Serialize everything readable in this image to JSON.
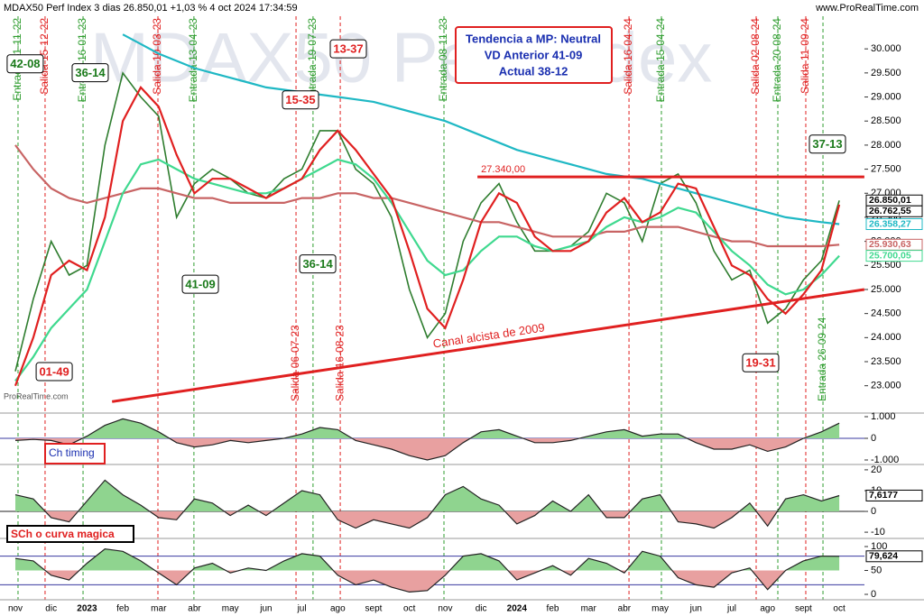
{
  "header": "MDAX50 Perf Index 3 dias 26.850,01 +1,03 % 4 oct 2024 17:34:59",
  "source": "www.ProRealTime.com",
  "watermark": "MDAX50 Perf Index",
  "footer_logo": "ProRealTime.com",
  "info_box": [
    "Tendencia a MP: Neutral",
    "VD Anterior 41-09",
    "Actual 38-12"
  ],
  "chart_data": [
    {
      "type": "line",
      "categories": [
        "nov",
        null,
        "dic",
        null,
        "2023",
        null,
        "feb",
        null,
        "mar",
        null,
        "abr",
        null,
        "may",
        null,
        "jun",
        null,
        "jul",
        null,
        "ago",
        null,
        "sept",
        null,
        "oct",
        null,
        "nov",
        null,
        "dic",
        null,
        "2024",
        null,
        "feb",
        null,
        "mar",
        null,
        "abr",
        null,
        "may",
        null,
        "jun",
        null,
        "jul",
        null,
        "ago",
        null,
        "sept",
        null,
        "oct"
      ],
      "ylim": [
        22432,
        30678
      ],
      "yticks": [
        {
          "value": 23000,
          "label": "23.000"
        },
        {
          "value": 23500,
          "label": "23.500"
        },
        {
          "value": 24000,
          "label": "24.000"
        },
        {
          "value": 24500,
          "label": "24.500"
        },
        {
          "value": 25000,
          "label": "25.000"
        },
        {
          "value": 25500,
          "label": "25.500"
        },
        {
          "value": 26000,
          "label": "26.000"
        },
        {
          "value": 26500,
          "label": "26.500"
        },
        {
          "value": 27000,
          "label": "27.000"
        },
        {
          "value": 27500,
          "label": "27.500"
        },
        {
          "value": 28000,
          "label": "28.000"
        },
        {
          "value": 28500,
          "label": "28.500"
        },
        {
          "value": 29000,
          "label": "29.000"
        },
        {
          "value": 29500,
          "label": "29.500"
        },
        {
          "value": 30000,
          "label": "30.000"
        }
      ],
      "series": [
        {
          "color": "#2f7d2f",
          "values": [
            23300,
            24800,
            26000,
            25300,
            25500,
            28000,
            29500,
            29000,
            28600,
            26500,
            27200,
            27500,
            27300,
            27000,
            26900,
            27300,
            27500,
            28300,
            28300,
            27500,
            27200,
            26500,
            25000,
            24000,
            24500,
            26000,
            26800,
            27200,
            26400,
            25800,
            25800,
            25900,
            26200,
            27000,
            26800,
            26000,
            27200,
            27400,
            26800,
            25800,
            25200,
            25400,
            24300,
            24600,
            25200,
            25600,
            26850.01
          ]
        },
        {
          "color": "#c86464",
          "values": [
            28000,
            27500,
            27100,
            26900,
            26800,
            26900,
            27000,
            27100,
            27100,
            27000,
            26900,
            26900,
            26800,
            26800,
            26800,
            26800,
            26900,
            26900,
            27000,
            27000,
            26900,
            26900,
            26800,
            26700,
            26600,
            26500,
            26400,
            26400,
            26300,
            26200,
            26100,
            26100,
            26100,
            26200,
            26200,
            26300,
            26300,
            26300,
            26200,
            26100,
            26000,
            26000,
            25900,
            25900,
            25900,
            25900,
            25930.63
          ]
        },
        {
          "color": "#1fb8c4",
          "values": [
            null,
            null,
            null,
            null,
            null,
            null,
            30300,
            30100,
            29900,
            29750,
            29600,
            29500,
            29400,
            29300,
            29200,
            29150,
            29100,
            29050,
            29000,
            28950,
            28900,
            28800,
            28700,
            28600,
            28500,
            28350,
            28200,
            28050,
            27900,
            27800,
            27700,
            27600,
            27500,
            27400,
            27350,
            27300,
            27200,
            27100,
            27000,
            26900,
            26800,
            26700,
            26600,
            26500,
            26450,
            26400,
            26358.27
          ]
        },
        {
          "color": "#3fd98f",
          "values": [
            23100,
            23600,
            24200,
            24600,
            25000,
            26000,
            27000,
            27600,
            27700,
            27500,
            27300,
            27200,
            27100,
            27000,
            27000,
            27100,
            27300,
            27500,
            27700,
            27600,
            27300,
            26800,
            26200,
            25600,
            25300,
            25400,
            25800,
            26100,
            26100,
            25900,
            25800,
            25900,
            26000,
            26300,
            26500,
            26400,
            26500,
            26700,
            26600,
            26200,
            25800,
            25500,
            25100,
            24900,
            25000,
            25300,
            25700.05
          ]
        },
        {
          "color": "#e02020",
          "values": [
            23000,
            24000,
            25300,
            25600,
            25400,
            26500,
            28500,
            29200,
            28800,
            27800,
            27000,
            27300,
            27300,
            27100,
            26900,
            27100,
            27300,
            27900,
            28300,
            27900,
            27400,
            26900,
            25800,
            24600,
            24200,
            25200,
            26400,
            27000,
            26800,
            26100,
            25800,
            25800,
            26000,
            26600,
            26900,
            26400,
            26600,
            27200,
            27100,
            26300,
            25500,
            25300,
            24800,
            24500,
            24900,
            25400,
            26762.55
          ]
        }
      ],
      "price_labels": [
        {
          "value": 26850.01,
          "label": "26.850,01",
          "color": "#000000"
        },
        {
          "value": 26762.55,
          "label": "26.762,55",
          "color": "#000000"
        },
        {
          "value": 26358.27,
          "label": "26.358,27",
          "color": "#1fb8c4"
        },
        {
          "value": 25930.63,
          "label": "25.930,63",
          "color": "#c86464"
        },
        {
          "value": 25700.05,
          "label": "25.700,05",
          "color": "#3fd98f"
        }
      ],
      "level": {
        "value": 27340,
        "label": "27.340,00",
        "x": [
          25.8,
          47.4
        ],
        "color": "#e02020"
      },
      "trendline": {
        "label": "Canal alcista de 2009",
        "x": [
          5.4,
          47.4
        ],
        "values": [
          22670,
          25000
        ],
        "color": "#e02020"
      },
      "signals": [
        {
          "label": "Entrada 11-11-22",
          "x": 0.15,
          "color": "#2f9d2f",
          "anchor": "top"
        },
        {
          "label": "Salida 15-12-22",
          "x": 1.66,
          "color": "#e02020",
          "anchor": "top"
        },
        {
          "label": "Entrada 16-01-23",
          "x": 3.78,
          "color": "#2f9d2f",
          "anchor": "top"
        },
        {
          "label": "Salida 10-03-23",
          "x": 7.96,
          "color": "#e02020",
          "anchor": "top"
        },
        {
          "label": "Entrada 13-04-23",
          "x": 9.97,
          "color": "#2f9d2f",
          "anchor": "top"
        },
        {
          "label": "Salida 06-07-23",
          "x": 15.67,
          "color": "#e02020",
          "anchor": "bottom"
        },
        {
          "label": "Entrada 19-07-23",
          "x": 16.62,
          "color": "#2f9d2f",
          "anchor": "top"
        },
        {
          "label": "Salida 16-08-23",
          "x": 18.14,
          "color": "#e02020",
          "anchor": "bottom"
        },
        {
          "label": "Entrada 08-11-23",
          "x": 23.93,
          "color": "#2f9d2f",
          "anchor": "top"
        },
        {
          "label": "Salida 16-04-24",
          "x": 34.26,
          "color": "#e02020",
          "anchor": "top"
        },
        {
          "label": "Entrada 15-04-24",
          "x": 36.07,
          "color": "#2f9d2f",
          "anchor": "top"
        },
        {
          "label": "Salida 02-08-24",
          "x": 41.36,
          "color": "#e02020",
          "anchor": "top"
        },
        {
          "label": "Entrada 20-08-24",
          "x": 42.57,
          "color": "#2f9d2f",
          "anchor": "top"
        },
        {
          "label": "Salida 11-09-24",
          "x": 44.13,
          "color": "#e02020",
          "anchor": "top"
        },
        {
          "label": "Entrada 26-09-24",
          "x": 45.09,
          "color": "#2f9d2f",
          "anchor": "bottom"
        }
      ],
      "annotations": [
        {
          "label": "42-08",
          "x": 0.55,
          "y": 29690,
          "color": "#1a7a1a"
        },
        {
          "label": "36-14",
          "x": 4.18,
          "y": 29505,
          "color": "#1a7a1a"
        },
        {
          "label": "01-49",
          "x": 2.17,
          "y": 23293,
          "color": "#e02020"
        },
        {
          "label": "41-09",
          "x": 10.33,
          "y": 25110,
          "color": "#1a7a1a"
        },
        {
          "label": "15-35",
          "x": 15.92,
          "y": 28940,
          "color": "#e02020"
        },
        {
          "label": "13-37",
          "x": 18.59,
          "y": 30000,
          "color": "#e02020"
        },
        {
          "label": "36-14",
          "x": 16.88,
          "y": 25531,
          "color": "#1a7a1a"
        },
        {
          "label": "37-13",
          "x": 45.34,
          "y": 28022,
          "color": "#1a7a1a"
        },
        {
          "label": "19-31",
          "x": 41.61,
          "y": 23476,
          "color": "#e02020"
        }
      ]
    },
    {
      "type": "area",
      "title": "Ch timing",
      "color": "#222222",
      "positive_color": "#8fd48f",
      "negative_color": "#e8a0a0",
      "ylim": [
        -1208,
        1417
      ],
      "yticks": [
        {
          "value": 1000,
          "label": "1.000"
        },
        0,
        {
          "value": -1000,
          "label": "-1.000"
        }
      ],
      "levels": [
        0
      ],
      "level_color": "#3a3aa0",
      "values": [
        -100,
        -50,
        -100,
        -300,
        100,
        600,
        900,
        700,
        300,
        -200,
        -400,
        -300,
        -100,
        -200,
        -100,
        0,
        200,
        500,
        400,
        -100,
        -300,
        -500,
        -800,
        -1000,
        -800,
        -200,
        300,
        400,
        100,
        -200,
        -200,
        -100,
        100,
        300,
        400,
        100,
        200,
        200,
        -200,
        -500,
        -500,
        -300,
        -600,
        -400,
        0,
        300,
        700
      ]
    },
    {
      "type": "area",
      "title": "SCh o curva magica",
      "color": "#222222",
      "positive_color": "#8fd48f",
      "negative_color": "#e8a0a0",
      "ylim": [
        -13,
        21.7
      ],
      "yticks": [
        20,
        10,
        0,
        -10
      ],
      "levels": [
        0
      ],
      "level_color": "#222222",
      "values": [
        8,
        6,
        -3,
        -5,
        5,
        15,
        8,
        3,
        -3,
        -4,
        6,
        4,
        -2,
        3,
        -2,
        4,
        10,
        8,
        -4,
        -8,
        -4,
        -6,
        -8,
        -3,
        8,
        12,
        6,
        3,
        -6,
        -2,
        5,
        0,
        8,
        -3,
        -3,
        6,
        8,
        -5,
        -6,
        -8,
        -3,
        4,
        -7,
        6,
        8,
        5,
        7.6177
      ],
      "price_labels": [
        {
          "value": 7.6177,
          "label": "7,6177",
          "color": "#000000"
        }
      ]
    },
    {
      "type": "area",
      "color": "#222222",
      "positive_color": "#8fd48f",
      "negative_color": "#e8a0a0",
      "ylim": [
        -11.3,
        111.3
      ],
      "yticks": [
        100,
        50,
        0
      ],
      "levels": [
        80,
        20
      ],
      "level_color": "#3a3aa0",
      "fill_base": 50,
      "values": [
        75,
        70,
        40,
        30,
        65,
        95,
        90,
        70,
        45,
        20,
        55,
        65,
        45,
        55,
        50,
        70,
        85,
        80,
        40,
        20,
        30,
        15,
        5,
        8,
        40,
        80,
        85,
        70,
        30,
        45,
        60,
        40,
        75,
        65,
        45,
        90,
        80,
        35,
        20,
        15,
        45,
        55,
        10,
        50,
        70,
        80,
        79.624
      ],
      "price_labels": [
        {
          "value": 79.624,
          "label": "79,624",
          "color": "#000000"
        }
      ]
    }
  ]
}
